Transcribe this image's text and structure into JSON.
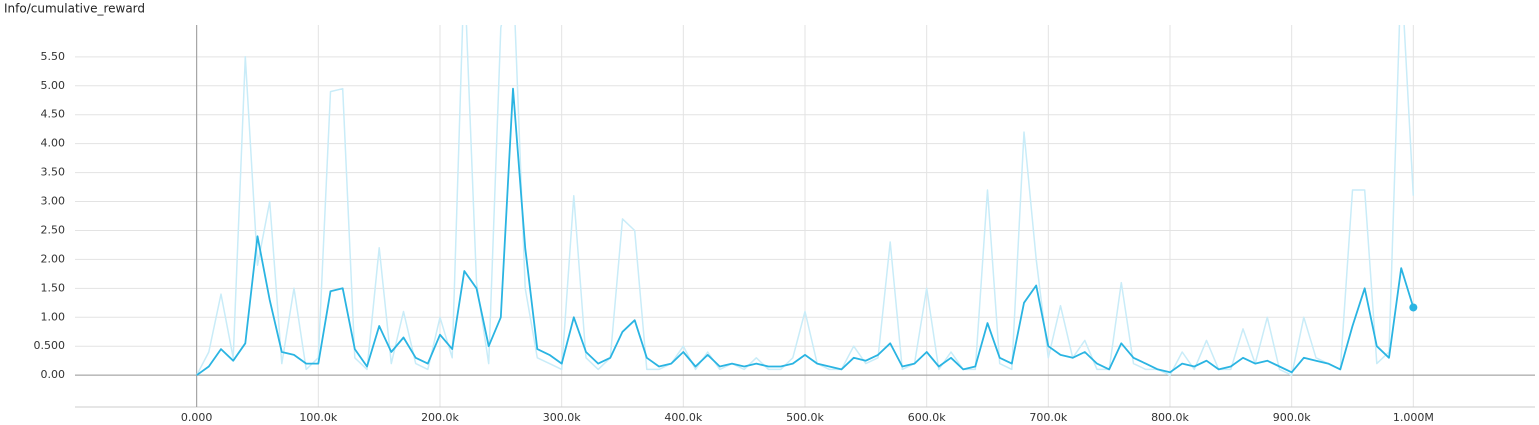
{
  "chart_data": {
    "type": "line",
    "title": "Info/cumulative_reward",
    "x": [
      0,
      10000,
      20000,
      30000,
      40000,
      50000,
      60000,
      70000,
      80000,
      90000,
      100000,
      110000,
      120000,
      130000,
      140000,
      150000,
      160000,
      170000,
      180000,
      190000,
      200000,
      210000,
      220000,
      230000,
      240000,
      250000,
      260000,
      270000,
      280000,
      290000,
      300000,
      310000,
      320000,
      330000,
      340000,
      350000,
      360000,
      370000,
      380000,
      390000,
      400000,
      410000,
      420000,
      430000,
      440000,
      450000,
      460000,
      470000,
      480000,
      490000,
      500000,
      510000,
      520000,
      530000,
      540000,
      550000,
      560000,
      570000,
      580000,
      590000,
      600000,
      610000,
      620000,
      630000,
      640000,
      650000,
      660000,
      670000,
      680000,
      690000,
      700000,
      710000,
      720000,
      730000,
      740000,
      750000,
      760000,
      770000,
      780000,
      790000,
      800000,
      810000,
      820000,
      830000,
      840000,
      850000,
      860000,
      870000,
      880000,
      890000,
      900000,
      910000,
      920000,
      930000,
      940000,
      950000,
      960000,
      970000,
      980000,
      990000,
      1000000
    ],
    "series": [
      {
        "color": "#c9ecf8",
        "values": [
          0.0,
          0.4,
          1.4,
          0.3,
          5.5,
          1.9,
          3.0,
          0.2,
          1.5,
          0.1,
          0.3,
          4.9,
          4.95,
          0.3,
          0.1,
          2.2,
          0.2,
          1.1,
          0.2,
          0.1,
          1.0,
          0.3,
          7.0,
          1.6,
          0.2,
          6.0,
          7.0,
          1.5,
          0.3,
          0.2,
          0.1,
          3.1,
          0.3,
          0.1,
          0.3,
          2.7,
          2.5,
          0.1,
          0.1,
          0.2,
          0.5,
          0.1,
          0.4,
          0.1,
          0.2,
          0.1,
          0.3,
          0.1,
          0.1,
          0.3,
          1.1,
          0.2,
          0.1,
          0.1,
          0.5,
          0.2,
          0.3,
          2.3,
          0.1,
          0.2,
          1.5,
          0.1,
          0.4,
          0.1,
          0.1,
          3.2,
          0.2,
          0.1,
          4.2,
          2.0,
          0.3,
          1.2,
          0.3,
          0.6,
          0.1,
          0.1,
          1.6,
          0.2,
          0.1,
          0.1,
          0.0,
          0.4,
          0.1,
          0.6,
          0.1,
          0.1,
          0.8,
          0.2,
          1.0,
          0.1,
          0.0,
          1.0,
          0.3,
          0.2,
          0.1,
          3.2,
          3.2,
          0.2,
          0.4,
          7.0,
          3.1
        ]
      },
      {
        "color": "#2ab4e2",
        "values": [
          0.0,
          0.15,
          0.45,
          0.25,
          0.55,
          2.4,
          1.3,
          0.4,
          0.35,
          0.2,
          0.2,
          1.45,
          1.5,
          0.45,
          0.15,
          0.85,
          0.4,
          0.65,
          0.3,
          0.2,
          0.7,
          0.45,
          1.8,
          1.5,
          0.5,
          1.0,
          4.95,
          2.2,
          0.45,
          0.35,
          0.2,
          1.0,
          0.4,
          0.2,
          0.3,
          0.75,
          0.95,
          0.3,
          0.15,
          0.2,
          0.4,
          0.15,
          0.35,
          0.15,
          0.2,
          0.15,
          0.2,
          0.15,
          0.15,
          0.2,
          0.35,
          0.2,
          0.15,
          0.1,
          0.3,
          0.25,
          0.35,
          0.55,
          0.15,
          0.2,
          0.4,
          0.15,
          0.3,
          0.1,
          0.15,
          0.9,
          0.3,
          0.2,
          1.25,
          1.55,
          0.5,
          0.35,
          0.3,
          0.4,
          0.2,
          0.1,
          0.55,
          0.3,
          0.2,
          0.1,
          0.05,
          0.2,
          0.15,
          0.25,
          0.1,
          0.15,
          0.3,
          0.2,
          0.25,
          0.15,
          0.05,
          0.3,
          0.25,
          0.2,
          0.1,
          0.85,
          1.5,
          0.5,
          0.3,
          1.85,
          1.17
        ]
      }
    ],
    "xlim": [
      -100000,
      1100000
    ],
    "ylim": [
      -0.55,
      6.05
    ],
    "xticks": [
      {
        "value": 0,
        "label": "0.000"
      },
      {
        "value": 100000,
        "label": "100.0k"
      },
      {
        "value": 200000,
        "label": "200.0k"
      },
      {
        "value": 300000,
        "label": "300.0k"
      },
      {
        "value": 400000,
        "label": "400.0k"
      },
      {
        "value": 500000,
        "label": "500.0k"
      },
      {
        "value": 600000,
        "label": "600.0k"
      },
      {
        "value": 700000,
        "label": "700.0k"
      },
      {
        "value": 800000,
        "label": "800.0k"
      },
      {
        "value": 900000,
        "label": "900.0k"
      },
      {
        "value": 1000000,
        "label": "1.000M"
      }
    ],
    "yticks": [
      {
        "value": 0,
        "label": "0.00"
      },
      {
        "value": 0.5,
        "label": "0.500"
      },
      {
        "value": 1,
        "label": "1.00"
      },
      {
        "value": 1.5,
        "label": "1.50"
      },
      {
        "value": 2,
        "label": "2.00"
      },
      {
        "value": 2.5,
        "label": "2.50"
      },
      {
        "value": 3,
        "label": "3.00"
      },
      {
        "value": 3.5,
        "label": "3.50"
      },
      {
        "value": 4,
        "label": "4.00"
      },
      {
        "value": 4.5,
        "label": "4.50"
      },
      {
        "value": 5,
        "label": "5.00"
      },
      {
        "value": 5.5,
        "label": "5.50"
      }
    ],
    "grid": true
  }
}
